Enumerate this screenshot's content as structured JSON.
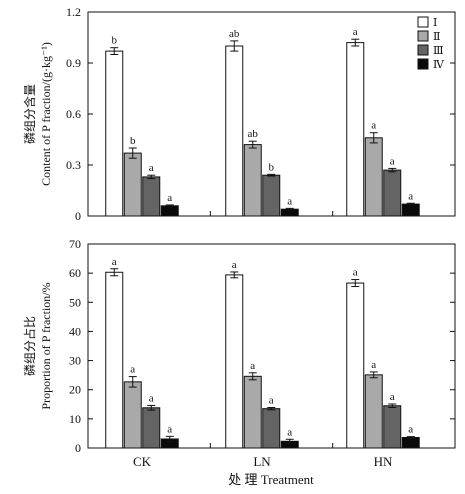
{
  "figure": {
    "xlabel": "处 理 Treatment",
    "categories": [
      "CK",
      "LN",
      "HN"
    ],
    "legend": {
      "placement": "top-right",
      "entries": [
        "Ⅰ",
        "Ⅱ",
        "Ⅲ",
        "Ⅳ"
      ]
    },
    "series_colors": [
      "#ffffff",
      "#a9a9a9",
      "#646464",
      "#0a0a0a"
    ]
  },
  "chart_data": [
    {
      "type": "bar",
      "ylabel_cn": "磷组分含量",
      "ylabel_en": "Content of P fraction/(g·kg⁻¹)",
      "ylim": [
        0,
        1.2
      ],
      "yticks": [
        0,
        0.3,
        0.6,
        0.9,
        1.2
      ],
      "ytick_labels": [
        "0",
        "0.3",
        "0.6",
        "0.9",
        "1.2"
      ],
      "categories": [
        "CK",
        "LN",
        "HN"
      ],
      "series": [
        {
          "name": "Ⅰ",
          "values": [
            0.97,
            1.0,
            1.02
          ],
          "errors": [
            0.02,
            0.03,
            0.02
          ],
          "letters": [
            "b",
            "ab",
            "a"
          ]
        },
        {
          "name": "Ⅱ",
          "values": [
            0.37,
            0.42,
            0.46
          ],
          "errors": [
            0.03,
            0.02,
            0.03
          ],
          "letters": [
            "b",
            "ab",
            "a"
          ]
        },
        {
          "name": "Ⅲ",
          "values": [
            0.23,
            0.24,
            0.27
          ],
          "errors": [
            0.01,
            0.005,
            0.01
          ],
          "letters": [
            "a",
            "b",
            "a"
          ]
        },
        {
          "name": "Ⅳ",
          "values": [
            0.06,
            0.04,
            0.07
          ],
          "errors": [
            0.005,
            0.005,
            0.005
          ],
          "letters": [
            "a",
            "a",
            "a"
          ]
        }
      ]
    },
    {
      "type": "bar",
      "ylabel_cn": "磷组分占比",
      "ylabel_en": "Proportion of P fraction/%",
      "ylim": [
        0,
        70
      ],
      "yticks": [
        0,
        10,
        20,
        30,
        40,
        50,
        60,
        70
      ],
      "ytick_labels": [
        "0",
        "10",
        "20",
        "30",
        "40",
        "50",
        "60",
        "70"
      ],
      "categories": [
        "CK",
        "LN",
        "HN"
      ],
      "series": [
        {
          "name": "Ⅰ",
          "values": [
            60.3,
            59.4,
            56.6
          ],
          "errors": [
            1.2,
            1.0,
            1.2
          ],
          "letters": [
            "a",
            "a",
            "a"
          ]
        },
        {
          "name": "Ⅱ",
          "values": [
            22.7,
            24.6,
            25.1
          ],
          "errors": [
            1.8,
            1.2,
            1.0
          ],
          "letters": [
            "a",
            "a",
            "a"
          ]
        },
        {
          "name": "Ⅲ",
          "values": [
            13.8,
            13.5,
            14.5
          ],
          "errors": [
            0.8,
            0.4,
            0.6
          ],
          "letters": [
            "a",
            "a",
            "a"
          ]
        },
        {
          "name": "Ⅳ",
          "values": [
            3.1,
            2.3,
            3.6
          ],
          "errors": [
            0.9,
            0.7,
            0.3
          ],
          "letters": [
            "a",
            "a",
            "a"
          ]
        }
      ]
    }
  ]
}
